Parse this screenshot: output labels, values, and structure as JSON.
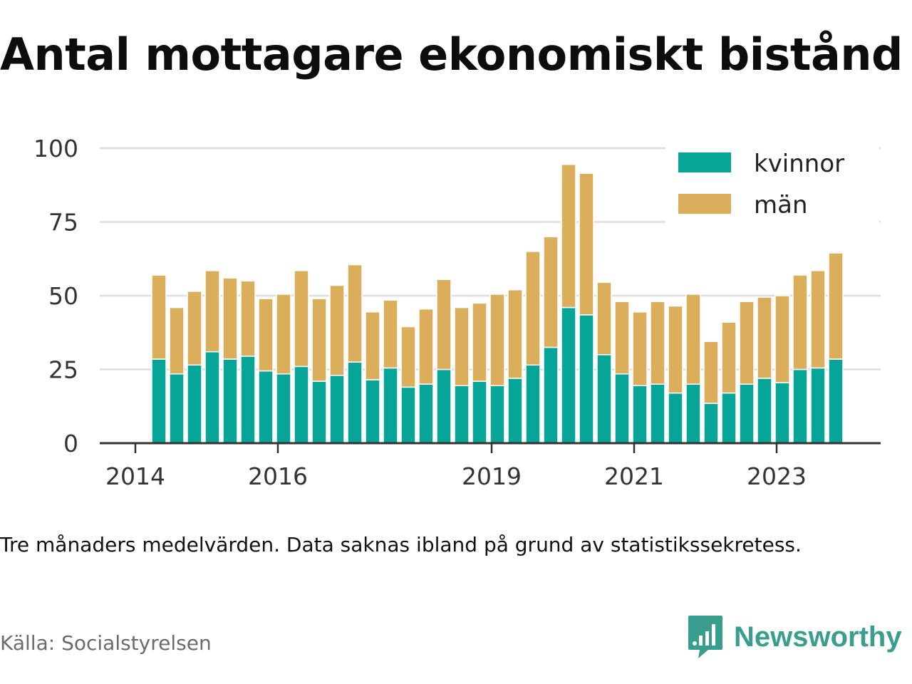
{
  "title": "Antal mottagare ekonomiskt bistånd",
  "note": "Tre månaders medelvärden. Data saknas ibland på grund av statistikssekretess.",
  "source": "Källa: Socialstyrelsen",
  "brand": {
    "name": "Newsworthy",
    "icon": "newsworthy-logo-icon",
    "color": "#3a9e8f"
  },
  "chart_data": {
    "type": "bar",
    "stacked": true,
    "x_ticks": [
      "2014",
      "2016",
      "2019",
      "2021",
      "2023"
    ],
    "x_tick_positions": [
      2014.0,
      2016.0,
      2019.0,
      2021.0,
      2023.0
    ],
    "x_range": [
      2013.5,
      2024.46
    ],
    "x": [
      2014.33,
      2014.58,
      2014.83,
      2015.08,
      2015.33,
      2015.58,
      2015.83,
      2016.08,
      2016.33,
      2016.58,
      2016.83,
      2017.08,
      2017.33,
      2017.58,
      2017.83,
      2018.08,
      2018.33,
      2018.58,
      2018.83,
      2019.08,
      2019.33,
      2019.58,
      2019.83,
      2020.08,
      2020.33,
      2020.58,
      2020.83,
      2021.08,
      2021.33,
      2021.58,
      2021.83,
      2022.08,
      2022.33,
      2022.58,
      2022.83,
      2023.08,
      2023.33,
      2023.58,
      2023.83
    ],
    "ylim": [
      0,
      100
    ],
    "y_ticks": [
      "0",
      "25",
      "50",
      "75",
      "100"
    ],
    "y_tick_values": [
      0,
      25,
      50,
      75,
      100
    ],
    "grid": true,
    "legend": "top-right",
    "series": [
      {
        "name": "kvinnor",
        "color": "#06a597",
        "values": [
          28.5,
          23.5,
          26.5,
          31,
          28.5,
          29.5,
          24.5,
          23.5,
          26,
          21,
          23,
          27.5,
          21.5,
          25.5,
          19,
          20,
          25,
          19.5,
          21,
          19.5,
          22,
          26.5,
          32.5,
          46,
          43.5,
          30,
          23.5,
          19.5,
          20,
          17,
          20,
          13.5,
          17,
          20,
          22,
          20.5,
          25,
          25.5,
          28.5
        ]
      },
      {
        "name": "män",
        "color": "#dbae5b",
        "values": [
          28.5,
          22.5,
          25,
          27.5,
          27.5,
          25.5,
          24.5,
          27,
          32.5,
          28,
          30.5,
          33,
          23,
          23,
          20.5,
          25.5,
          30.5,
          26.5,
          26.5,
          31,
          30,
          38.5,
          37.5,
          48.5,
          48,
          24.5,
          24.5,
          25,
          28,
          29.5,
          30.5,
          21,
          24,
          28,
          27.5,
          29.5,
          32,
          33,
          36
        ]
      }
    ]
  }
}
